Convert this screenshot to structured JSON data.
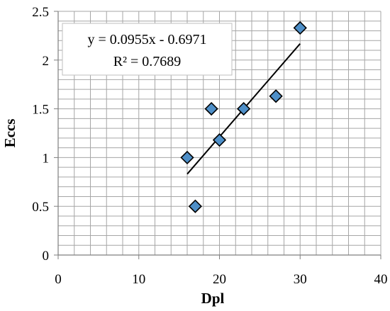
{
  "chart_data": {
    "type": "scatter",
    "xlabel": "Dpl",
    "ylabel": "Eccs",
    "xlim": [
      0,
      40
    ],
    "ylim": [
      0,
      2.5
    ],
    "xticks": [
      "0",
      "10",
      "20",
      "30",
      "40"
    ],
    "yticks": [
      "0",
      "0.5",
      "1",
      "1.5",
      "2",
      "2.5"
    ],
    "grid": true,
    "series": [
      {
        "x": [
          16,
          17,
          19,
          20,
          23,
          27,
          30
        ],
        "y": [
          1.0,
          0.5,
          1.5,
          1.18,
          1.5,
          1.63,
          2.33
        ],
        "marker": "diamond",
        "color": "#4e8fc8"
      }
    ],
    "trendline": {
      "type": "linear",
      "slope": 0.0955,
      "intercept": -0.6971,
      "x_range": [
        16,
        30
      ],
      "equation": "y = 0.0955x - 0.6971",
      "r_squared": "R² = 0.7689"
    }
  }
}
